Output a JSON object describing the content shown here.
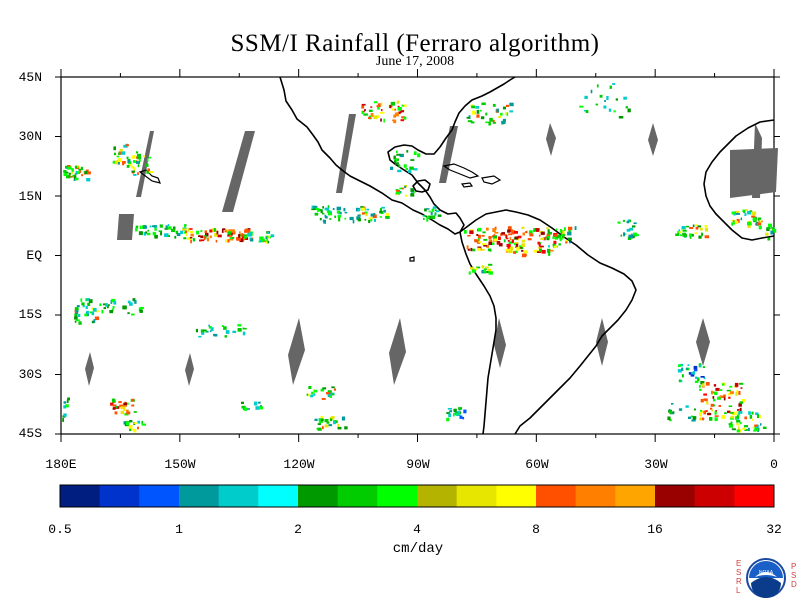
{
  "title": "SSM/I Rainfall (Ferraro algorithm)",
  "subtitle": "June 17, 2008",
  "lat_labels": [
    "45N",
    "30N",
    "15N",
    "EQ",
    "15S",
    "30S",
    "45S"
  ],
  "lon_labels": [
    "180E",
    "150W",
    "120W",
    "90W",
    "60W",
    "30W",
    "0"
  ],
  "colorbar": {
    "labels": [
      "0.5",
      "1",
      "2",
      "4",
      "8",
      "16",
      "32"
    ],
    "colors": [
      "#001e80",
      "#0033cc",
      "#0055ff",
      "#00999c",
      "#00cccc",
      "#00ffff",
      "#009900",
      "#00cc00",
      "#00ff00",
      "#b3b300",
      "#e6e600",
      "#ffff00",
      "#ff5000",
      "#ff8000",
      "#ffa500",
      "#990000",
      "#cc0000",
      "#ff0000"
    ],
    "units": "cm/day"
  },
  "map": {
    "region": "Eastern Pacific / Americas / Atlantic",
    "lat_range": [
      -45,
      45
    ],
    "lon_range": [
      -180,
      0
    ],
    "missing_color": "#666666",
    "coast_color": "#000000"
  },
  "logo": {
    "left_letters": [
      "E",
      "S",
      "R",
      "L"
    ],
    "right_letters": [
      "P",
      "S",
      "D"
    ],
    "emblem": "NOAA"
  }
}
